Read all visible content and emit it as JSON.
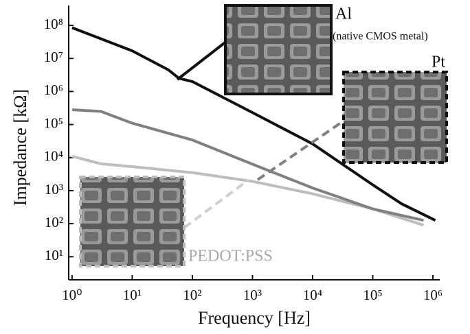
{
  "chart_data": {
    "type": "line",
    "log_x": true,
    "log_y": true,
    "x_label": "Frequency [Hz]",
    "y_label": "Impedance [kΩ]",
    "xlim": [
      0.88,
      1300000
    ],
    "ylim": [
      2,
      400000000
    ],
    "xticks": [
      {
        "value": 1,
        "label": "10⁰"
      },
      {
        "value": 10,
        "label": "10¹"
      },
      {
        "value": 100,
        "label": "10²"
      },
      {
        "value": 1000,
        "label": "10³"
      },
      {
        "value": 10000,
        "label": "10⁴"
      },
      {
        "value": 100000,
        "label": "10⁵"
      },
      {
        "value": 1000000,
        "label": "10⁶"
      }
    ],
    "yticks": [
      {
        "value": 10,
        "label": "10¹"
      },
      {
        "value": 100,
        "label": "10²"
      },
      {
        "value": 1000,
        "label": "10³"
      },
      {
        "value": 10000,
        "label": "10⁴"
      },
      {
        "value": 100000,
        "label": "10⁵"
      },
      {
        "value": 1000000,
        "label": "10⁶"
      },
      {
        "value": 10000000,
        "label": "10⁷"
      },
      {
        "value": 100000000,
        "label": "10⁸"
      }
    ],
    "series": [
      {
        "name": "Al",
        "color": "#111111",
        "x": [
          1,
          10,
          40,
          60,
          100,
          1000,
          10000,
          100000,
          300000,
          1100000
        ],
        "values": [
          85000000,
          17000000,
          4500000,
          2500000,
          2000000,
          230000,
          26000,
          1500,
          400,
          126
        ]
      },
      {
        "name": "Pt",
        "color": "#808080",
        "x": [
          1,
          3,
          10,
          100,
          1000,
          10000,
          100000,
          700000
        ],
        "values": [
          280000,
          250000,
          110000,
          34000,
          6300,
          1200,
          280,
          126
        ]
      },
      {
        "name": "PEDOT:PSS",
        "color": "#bdbdbd",
        "x": [
          1,
          3,
          10,
          100,
          1000,
          10000,
          100000,
          700000
        ],
        "values": [
          11000,
          6500,
          5300,
          3500,
          1900,
          800,
          280,
          90
        ]
      }
    ],
    "annotations": [
      "(native CMOS metal)"
    ]
  }
}
